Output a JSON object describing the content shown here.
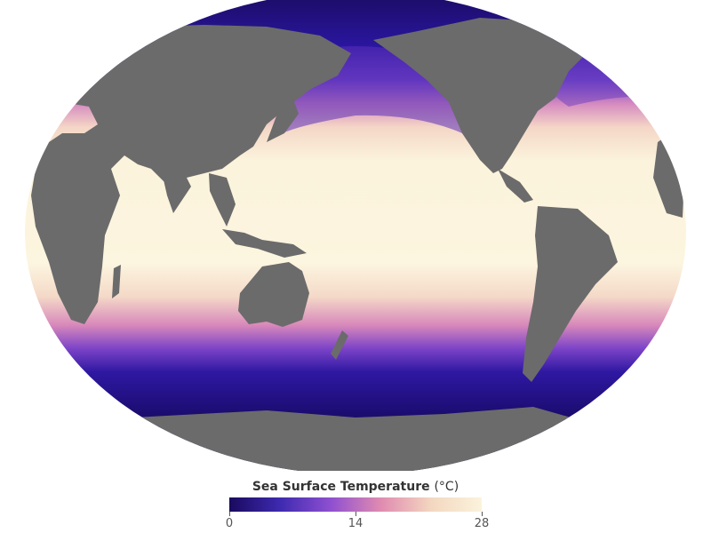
{
  "legend": {
    "title": "Sea Surface Temperature",
    "unit": "(°C)",
    "ticks": [
      "0",
      "14",
      "28"
    ],
    "range": [
      0,
      28
    ],
    "colors": [
      "#1a0a5e",
      "#3d2ab0",
      "#8e4fd0",
      "#e08bb0",
      "#f3d7c0",
      "#fbf3dc"
    ]
  },
  "map": {
    "projection": "Robinson (Pacific-centered)",
    "land_color": "#6b6b6b",
    "ocean_warm": "#fbf3dc",
    "ocean_cold": "#1b0c66"
  }
}
